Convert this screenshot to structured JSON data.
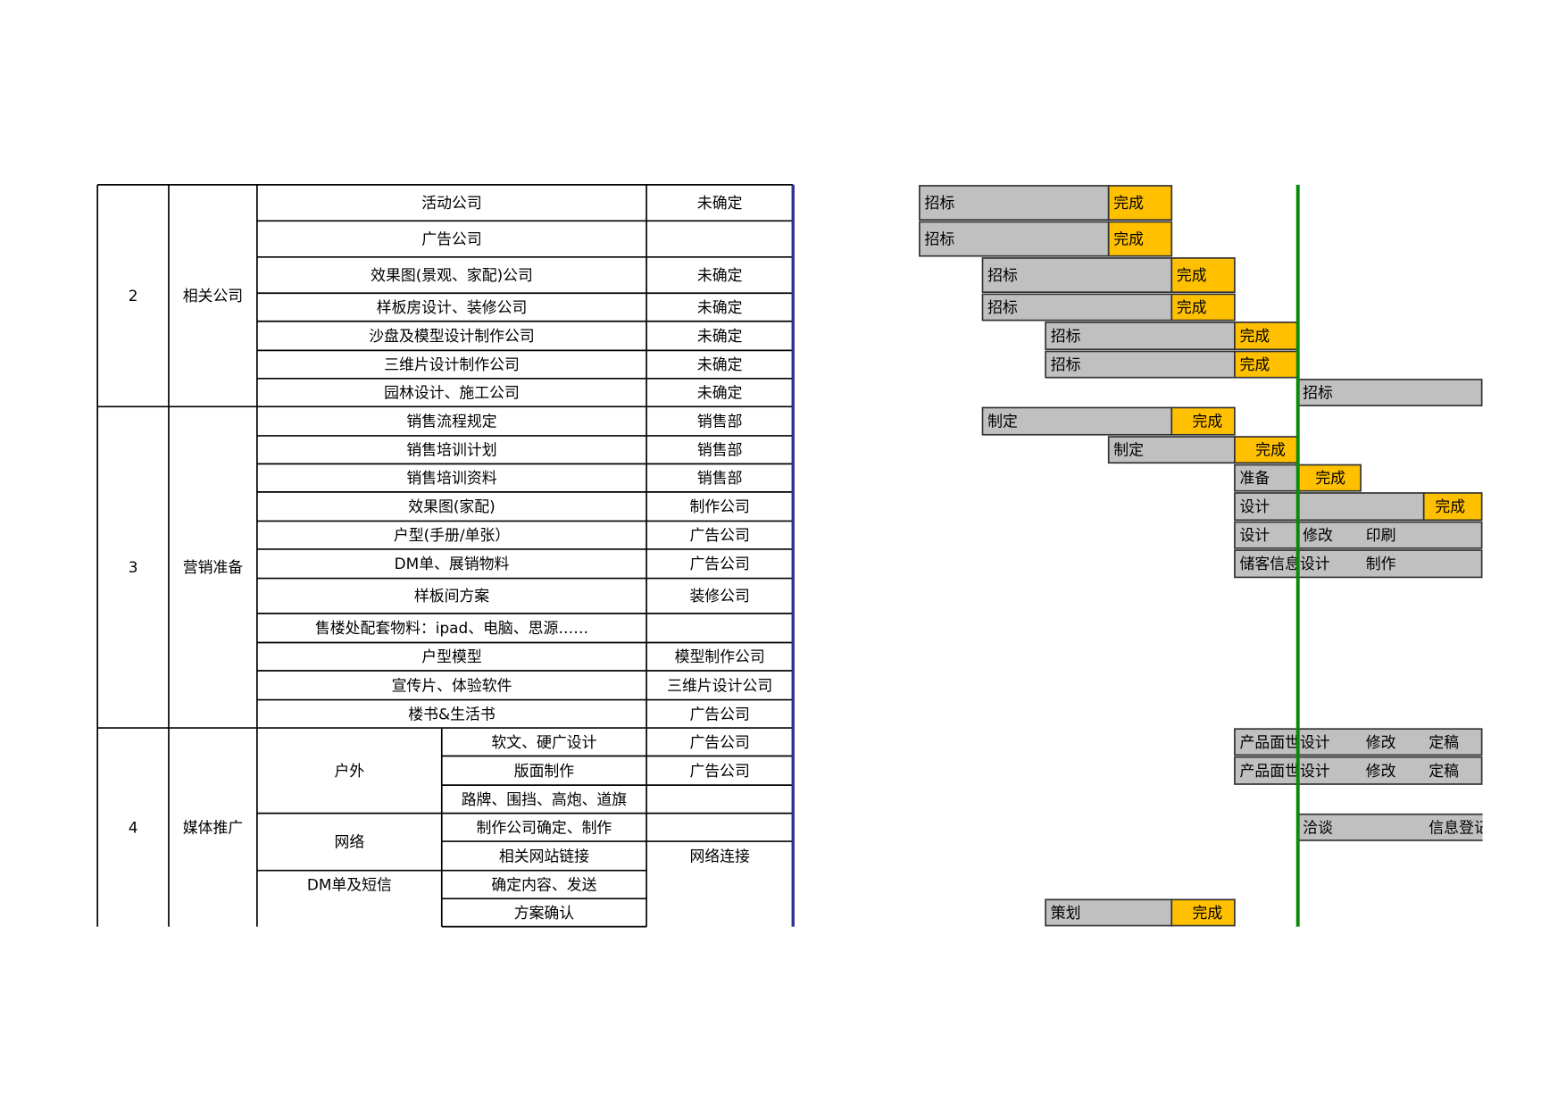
{
  "sections": [
    {
      "number": "2",
      "name": "相关公司"
    },
    {
      "number": "3",
      "name": "营销准备"
    },
    {
      "number": "4",
      "name": "媒体推广"
    }
  ],
  "subgroups": [
    "户外",
    "网络",
    "DM单及短信"
  ],
  "rows": [
    {
      "task": "活动公司",
      "owner": "未确定",
      "bars": [
        "招标",
        "完成"
      ]
    },
    {
      "task": "广告公司",
      "owner": null,
      "bars": [
        "招标",
        "完成"
      ]
    },
    {
      "task": "效果图(景观、家配)公司",
      "owner": "未确定",
      "bars": [
        "招标",
        "完成"
      ]
    },
    {
      "task": "样板房设计、装修公司",
      "owner": "未确定",
      "bars": [
        "招标",
        "完成"
      ]
    },
    {
      "task": "沙盘及模型设计制作公司",
      "owner": "未确定",
      "bars": [
        "招标",
        "完成"
      ]
    },
    {
      "task": "三维片设计制作公司",
      "owner": "未确定",
      "bars": [
        "招标",
        "完成"
      ]
    },
    {
      "task": "园林设计、施工公司",
      "owner": "未确定",
      "bars": [
        "招标"
      ]
    },
    {
      "task": "销售流程规定",
      "owner": "销售部",
      "bars": [
        "制定",
        "完成"
      ]
    },
    {
      "task": "销售培训计划",
      "owner": "销售部",
      "bars": [
        "制定",
        "完成"
      ]
    },
    {
      "task": "销售培训资料",
      "owner": "销售部",
      "bars": [
        "准备",
        "完成"
      ]
    },
    {
      "task": "效果图(家配)",
      "owner": "制作公司",
      "bars": [
        "设计",
        "完成"
      ]
    },
    {
      "task": "户型(手册/单张）",
      "owner": "广告公司",
      "bars": [
        "设计",
        "修改",
        "印刷"
      ]
    },
    {
      "task": "DM单、展销物料",
      "owner": "广告公司",
      "bars": [
        "储客信息设计",
        "制作"
      ]
    },
    {
      "task": "样板间方案",
      "owner": "装修公司",
      "bars": []
    },
    {
      "task": "售楼处配套物料：ipad、电脑、思源……",
      "owner": null,
      "bars": []
    },
    {
      "task": "户型模型",
      "owner": "模型制作公司",
      "bars": []
    },
    {
      "task": "宣传片、体验软件",
      "owner": "三维片设计公司",
      "bars": []
    },
    {
      "task": "楼书&生活书",
      "owner": "广告公司",
      "bars": []
    },
    {
      "task": "软文、硬广设计",
      "owner": "广告公司",
      "bars": [
        "产品面世设计",
        "修改",
        "定稿"
      ]
    },
    {
      "task": "版面制作",
      "owner": "广告公司",
      "bars": [
        "产品面世设计",
        "修改",
        "定稿"
      ]
    },
    {
      "task": "路牌、围挡、高炮、道旗",
      "owner": null,
      "bars": []
    },
    {
      "task": "制作公司确定、制作",
      "owner": null,
      "bars": [
        "洽谈",
        "信息登记"
      ]
    },
    {
      "task": "相关网站链接",
      "owner": "网络连接",
      "bars": []
    },
    {
      "task": "确定内容、发送",
      "owner": null,
      "bars": []
    },
    {
      "task": "方案确认",
      "owner": null,
      "bars": [
        "策划",
        "完成"
      ]
    }
  ]
}
